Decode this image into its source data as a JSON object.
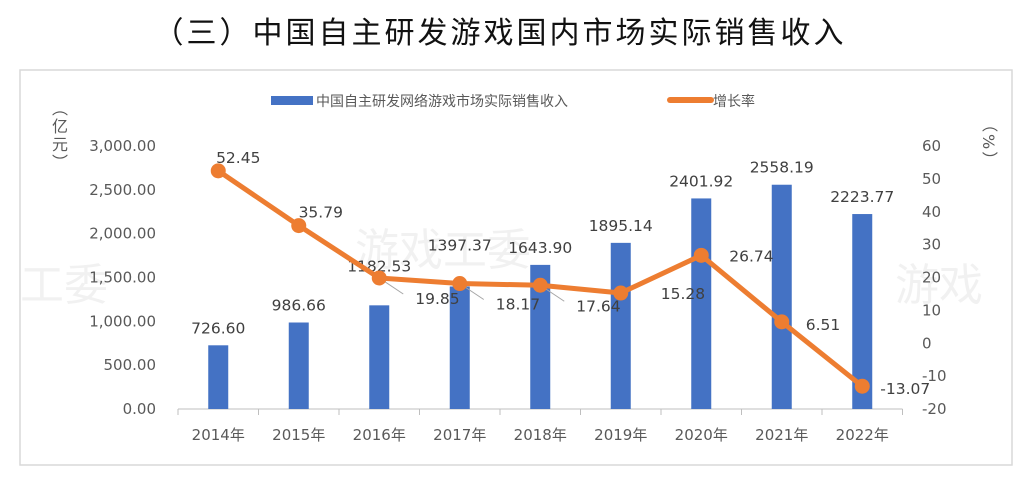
{
  "title": "（三）中国自主研发游戏国内市场实际销售收入",
  "watermark": [
    "游戏工委",
    "工委",
    "游戏"
  ],
  "chart_data": {
    "type": "bar+line",
    "categories": [
      "2014年",
      "2015年",
      "2016年",
      "2017年",
      "2018年",
      "2019年",
      "2020年",
      "2021年",
      "2022年"
    ],
    "series": [
      {
        "name": "中国自主研发网络游戏市场实际销售收入",
        "type": "bar",
        "axis": "left",
        "color": "#4472C4",
        "values": [
          726.6,
          986.66,
          1182.53,
          1397.37,
          1643.9,
          1895.14,
          2401.92,
          2558.19,
          2223.77
        ],
        "labels": [
          "726.60",
          "986.66",
          "1182.53",
          "1397.37",
          "1643.90",
          "1895.14",
          "2401.92",
          "2558.19",
          "2223.77"
        ]
      },
      {
        "name": "增长率",
        "type": "line",
        "axis": "right",
        "color": "#ED7D31",
        "values": [
          52.45,
          35.79,
          19.85,
          18.17,
          17.64,
          15.28,
          26.74,
          6.51,
          -13.07
        ],
        "labels": [
          "52.45",
          "35.79",
          "19.85",
          "18.17",
          "17.64",
          "15.28",
          "26.74",
          "6.51",
          "-13.07"
        ]
      }
    ],
    "left_axis": {
      "label": "（亿元）",
      "range": [
        0,
        3000
      ],
      "ticks": [
        "0.00",
        "500.00",
        "1,000.00",
        "1,500.00",
        "2,000.00",
        "2,500.00",
        "3,000.00"
      ]
    },
    "right_axis": {
      "label": "（%）",
      "range": [
        -20,
        60
      ],
      "ticks": [
        "-20",
        "-10",
        "0",
        "10",
        "20",
        "30",
        "40",
        "50",
        "60"
      ]
    },
    "legend": "top",
    "grid": false
  }
}
